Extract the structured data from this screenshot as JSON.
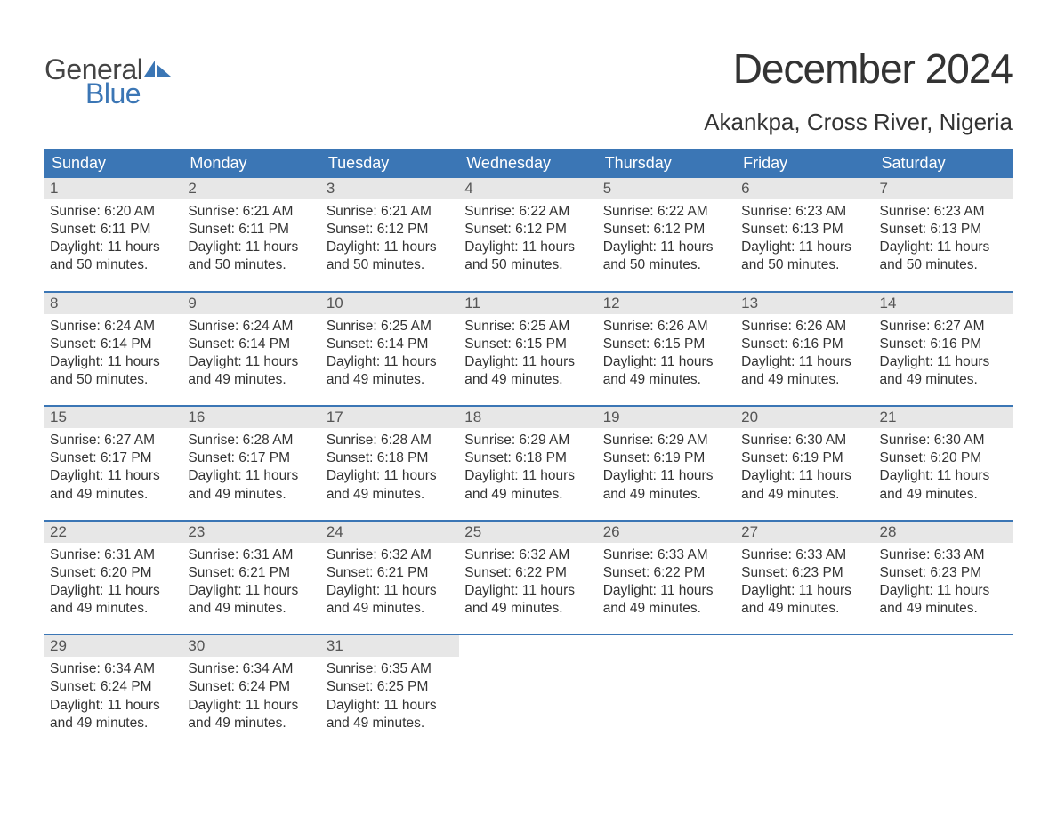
{
  "logo": {
    "text_general": "General",
    "text_blue": "Blue",
    "icon_color": "#3b76b5"
  },
  "title": {
    "month": "December 2024",
    "location": "Akankpa, Cross River, Nigeria"
  },
  "colors": {
    "header_bg": "#3b76b5",
    "header_fg": "#ffffff",
    "daynum_bg": "#e7e7e7",
    "daynum_fg": "#555555",
    "text": "#333333",
    "week_border": "#3b76b5",
    "page_bg": "#ffffff"
  },
  "typography": {
    "month_title_fontsize": 46,
    "location_fontsize": 26,
    "header_fontsize": 18,
    "daynum_fontsize": 17,
    "body_fontsize": 15.5
  },
  "calendar": {
    "day_headers": [
      "Sunday",
      "Monday",
      "Tuesday",
      "Wednesday",
      "Thursday",
      "Friday",
      "Saturday"
    ],
    "weeks": [
      [
        {
          "num": "1",
          "sunrise": "Sunrise: 6:20 AM",
          "sunset": "Sunset: 6:11 PM",
          "dl1": "Daylight: 11 hours",
          "dl2": "and 50 minutes."
        },
        {
          "num": "2",
          "sunrise": "Sunrise: 6:21 AM",
          "sunset": "Sunset: 6:11 PM",
          "dl1": "Daylight: 11 hours",
          "dl2": "and 50 minutes."
        },
        {
          "num": "3",
          "sunrise": "Sunrise: 6:21 AM",
          "sunset": "Sunset: 6:12 PM",
          "dl1": "Daylight: 11 hours",
          "dl2": "and 50 minutes."
        },
        {
          "num": "4",
          "sunrise": "Sunrise: 6:22 AM",
          "sunset": "Sunset: 6:12 PM",
          "dl1": "Daylight: 11 hours",
          "dl2": "and 50 minutes."
        },
        {
          "num": "5",
          "sunrise": "Sunrise: 6:22 AM",
          "sunset": "Sunset: 6:12 PM",
          "dl1": "Daylight: 11 hours",
          "dl2": "and 50 minutes."
        },
        {
          "num": "6",
          "sunrise": "Sunrise: 6:23 AM",
          "sunset": "Sunset: 6:13 PM",
          "dl1": "Daylight: 11 hours",
          "dl2": "and 50 minutes."
        },
        {
          "num": "7",
          "sunrise": "Sunrise: 6:23 AM",
          "sunset": "Sunset: 6:13 PM",
          "dl1": "Daylight: 11 hours",
          "dl2": "and 50 minutes."
        }
      ],
      [
        {
          "num": "8",
          "sunrise": "Sunrise: 6:24 AM",
          "sunset": "Sunset: 6:14 PM",
          "dl1": "Daylight: 11 hours",
          "dl2": "and 50 minutes."
        },
        {
          "num": "9",
          "sunrise": "Sunrise: 6:24 AM",
          "sunset": "Sunset: 6:14 PM",
          "dl1": "Daylight: 11 hours",
          "dl2": "and 49 minutes."
        },
        {
          "num": "10",
          "sunrise": "Sunrise: 6:25 AM",
          "sunset": "Sunset: 6:14 PM",
          "dl1": "Daylight: 11 hours",
          "dl2": "and 49 minutes."
        },
        {
          "num": "11",
          "sunrise": "Sunrise: 6:25 AM",
          "sunset": "Sunset: 6:15 PM",
          "dl1": "Daylight: 11 hours",
          "dl2": "and 49 minutes."
        },
        {
          "num": "12",
          "sunrise": "Sunrise: 6:26 AM",
          "sunset": "Sunset: 6:15 PM",
          "dl1": "Daylight: 11 hours",
          "dl2": "and 49 minutes."
        },
        {
          "num": "13",
          "sunrise": "Sunrise: 6:26 AM",
          "sunset": "Sunset: 6:16 PM",
          "dl1": "Daylight: 11 hours",
          "dl2": "and 49 minutes."
        },
        {
          "num": "14",
          "sunrise": "Sunrise: 6:27 AM",
          "sunset": "Sunset: 6:16 PM",
          "dl1": "Daylight: 11 hours",
          "dl2": "and 49 minutes."
        }
      ],
      [
        {
          "num": "15",
          "sunrise": "Sunrise: 6:27 AM",
          "sunset": "Sunset: 6:17 PM",
          "dl1": "Daylight: 11 hours",
          "dl2": "and 49 minutes."
        },
        {
          "num": "16",
          "sunrise": "Sunrise: 6:28 AM",
          "sunset": "Sunset: 6:17 PM",
          "dl1": "Daylight: 11 hours",
          "dl2": "and 49 minutes."
        },
        {
          "num": "17",
          "sunrise": "Sunrise: 6:28 AM",
          "sunset": "Sunset: 6:18 PM",
          "dl1": "Daylight: 11 hours",
          "dl2": "and 49 minutes."
        },
        {
          "num": "18",
          "sunrise": "Sunrise: 6:29 AM",
          "sunset": "Sunset: 6:18 PM",
          "dl1": "Daylight: 11 hours",
          "dl2": "and 49 minutes."
        },
        {
          "num": "19",
          "sunrise": "Sunrise: 6:29 AM",
          "sunset": "Sunset: 6:19 PM",
          "dl1": "Daylight: 11 hours",
          "dl2": "and 49 minutes."
        },
        {
          "num": "20",
          "sunrise": "Sunrise: 6:30 AM",
          "sunset": "Sunset: 6:19 PM",
          "dl1": "Daylight: 11 hours",
          "dl2": "and 49 minutes."
        },
        {
          "num": "21",
          "sunrise": "Sunrise: 6:30 AM",
          "sunset": "Sunset: 6:20 PM",
          "dl1": "Daylight: 11 hours",
          "dl2": "and 49 minutes."
        }
      ],
      [
        {
          "num": "22",
          "sunrise": "Sunrise: 6:31 AM",
          "sunset": "Sunset: 6:20 PM",
          "dl1": "Daylight: 11 hours",
          "dl2": "and 49 minutes."
        },
        {
          "num": "23",
          "sunrise": "Sunrise: 6:31 AM",
          "sunset": "Sunset: 6:21 PM",
          "dl1": "Daylight: 11 hours",
          "dl2": "and 49 minutes."
        },
        {
          "num": "24",
          "sunrise": "Sunrise: 6:32 AM",
          "sunset": "Sunset: 6:21 PM",
          "dl1": "Daylight: 11 hours",
          "dl2": "and 49 minutes."
        },
        {
          "num": "25",
          "sunrise": "Sunrise: 6:32 AM",
          "sunset": "Sunset: 6:22 PM",
          "dl1": "Daylight: 11 hours",
          "dl2": "and 49 minutes."
        },
        {
          "num": "26",
          "sunrise": "Sunrise: 6:33 AM",
          "sunset": "Sunset: 6:22 PM",
          "dl1": "Daylight: 11 hours",
          "dl2": "and 49 minutes."
        },
        {
          "num": "27",
          "sunrise": "Sunrise: 6:33 AM",
          "sunset": "Sunset: 6:23 PM",
          "dl1": "Daylight: 11 hours",
          "dl2": "and 49 minutes."
        },
        {
          "num": "28",
          "sunrise": "Sunrise: 6:33 AM",
          "sunset": "Sunset: 6:23 PM",
          "dl1": "Daylight: 11 hours",
          "dl2": "and 49 minutes."
        }
      ],
      [
        {
          "num": "29",
          "sunrise": "Sunrise: 6:34 AM",
          "sunset": "Sunset: 6:24 PM",
          "dl1": "Daylight: 11 hours",
          "dl2": "and 49 minutes."
        },
        {
          "num": "30",
          "sunrise": "Sunrise: 6:34 AM",
          "sunset": "Sunset: 6:24 PM",
          "dl1": "Daylight: 11 hours",
          "dl2": "and 49 minutes."
        },
        {
          "num": "31",
          "sunrise": "Sunrise: 6:35 AM",
          "sunset": "Sunset: 6:25 PM",
          "dl1": "Daylight: 11 hours",
          "dl2": "and 49 minutes."
        },
        null,
        null,
        null,
        null
      ]
    ]
  }
}
